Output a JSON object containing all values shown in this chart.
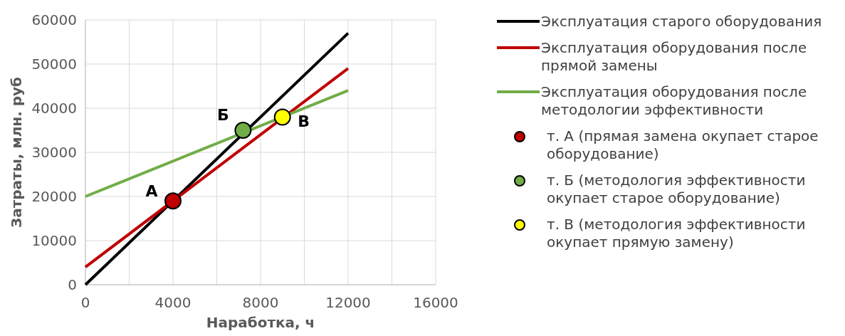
{
  "chart_data": {
    "type": "line",
    "xlabel": "Наработка, ч",
    "ylabel": "Затраты, млн. руб",
    "xlim": [
      0,
      16000
    ],
    "xticks": [
      0,
      {
        "value": 2000,
        "label": null
      },
      4000,
      {
        "value": 6000,
        "label": null
      },
      8000,
      {
        "value": 10000,
        "label": null
      },
      12000,
      {
        "value": 14000,
        "label": null
      },
      16000
    ],
    "ylim": [
      0,
      60000
    ],
    "yticks": [
      0,
      10000,
      20000,
      30000,
      40000,
      50000,
      60000
    ],
    "grid": true,
    "legend": "right",
    "line_style": "solid",
    "series": [
      {
        "name": "Эксплуатация старого оборудования",
        "color": "#000000",
        "x": [
          0,
          12000
        ],
        "values": [
          0,
          57000
        ]
      },
      {
        "name": "Эксплуатация оборудования после прямой замены",
        "color": "#c00000",
        "x": [
          0,
          12000
        ],
        "values": [
          4000,
          49000
        ]
      },
      {
        "name": "Эксплуатация оборудования после методологии эффективности",
        "color": "#70ad47",
        "x": [
          0,
          12000
        ],
        "values": [
          20000,
          44000
        ]
      },
      {
        "name": "т. А (прямая замена окупает старое оборудование)",
        "type": "scatter",
        "marker": "circle",
        "color": "#c00000",
        "x": [
          4000
        ],
        "values": [
          19000
        ]
      },
      {
        "name": "т. Б (методология эффективности окупает старое оборудование)",
        "type": "scatter",
        "marker": "circle",
        "color": "#70ad47",
        "x": [
          7200
        ],
        "values": [
          35000
        ]
      },
      {
        "name": "т. В (методология эффективности окупает прямую замену)",
        "type": "scatter",
        "marker": "circle",
        "color": "#ffff00",
        "x": [
          9000
        ],
        "values": [
          38000
        ]
      }
    ],
    "annotations": [
      {
        "text": "А",
        "x": 4000,
        "y": 19000
      },
      {
        "text": "Б",
        "x": 7200,
        "y": 35000
      },
      {
        "text": "В",
        "x": 9000,
        "y": 38000
      }
    ]
  }
}
